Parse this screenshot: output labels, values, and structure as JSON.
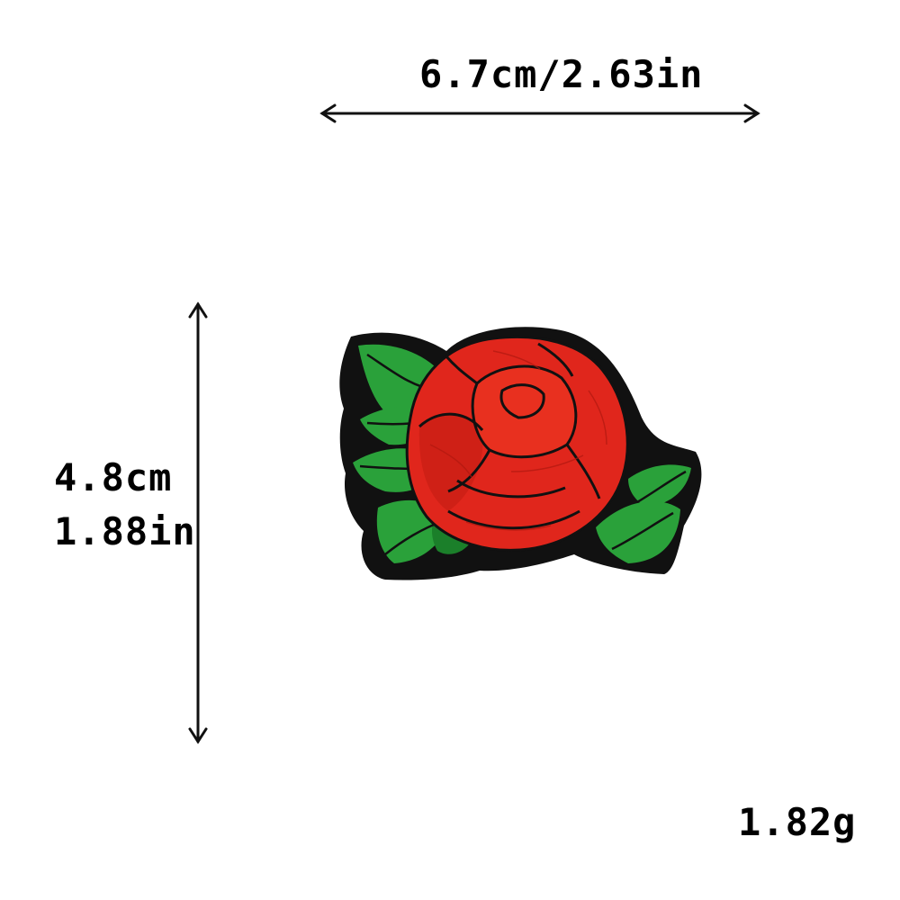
{
  "dimensions": {
    "width_label": "6.7cm/2.63in",
    "height_cm_label": "4.8cm",
    "height_in_label": "1.88in",
    "weight_label": "1.82g"
  },
  "image": {
    "subject": "rose-embroidered-patch-icon"
  },
  "colors": {
    "petal_red": "#e0261c",
    "petal_shadow": "#b01810",
    "leaf_green": "#2aa13a",
    "leaf_dark": "#1b7f2a",
    "border_black": "#111111"
  }
}
